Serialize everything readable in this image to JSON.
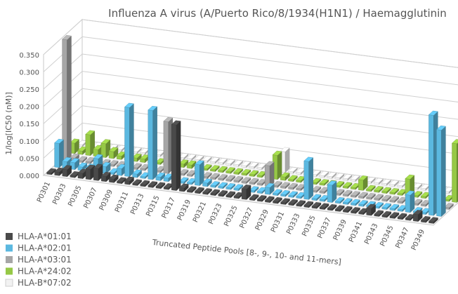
{
  "chart_data": {
    "type": "bar",
    "variant": "3d-clustered-column",
    "title": "Influenza A virus (A/Puerto Rico/8/1934(H1N1) / Haemagglutinin",
    "xlabel": "Truncated Peptide Pools [8-, 9-, 10- and 11-mers]",
    "ylabel": "1/log[IC50 (nM)]",
    "ylim": [
      0,
      0.35
    ],
    "yticks": [
      "0.000",
      "0.050",
      "0.100",
      "0.150",
      "0.200",
      "0.250",
      "0.300",
      "0.350"
    ],
    "categories": [
      "P0301",
      "P0302",
      "P0303",
      "P0304",
      "P0305",
      "P0306",
      "P0307",
      "P0308",
      "P0309",
      "P0310",
      "P0311",
      "P0312",
      "P0313",
      "P0314",
      "P0315",
      "P0316",
      "P0317",
      "P0318",
      "P0319",
      "P0320",
      "P0321",
      "P0322",
      "P0323",
      "P0324",
      "P0325",
      "P0326",
      "P0327",
      "P0328",
      "P0329",
      "P0330",
      "P0331",
      "P0332",
      "P0333",
      "P0334",
      "P0335",
      "P0336",
      "P0337",
      "P0338",
      "P0339",
      "P0340",
      "P0341",
      "P0342",
      "P0343",
      "P0344",
      "P0345",
      "P0346",
      "P0347",
      "P0348",
      "P0349",
      "P0350"
    ],
    "category_labels_shown": [
      "P0301",
      "P0303",
      "P0305",
      "P0307",
      "P0309",
      "P0311",
      "P0313",
      "P0315",
      "P0317",
      "P0319",
      "P0321",
      "P0323",
      "P0325",
      "P0327",
      "P0329",
      "P0331",
      "P0333",
      "P0335",
      "P0337",
      "P0339",
      "P0341",
      "P0343",
      "P0345",
      "P0347",
      "P0349"
    ],
    "series": [
      {
        "name": "HLA-A*01:01",
        "color": "#4a4a4a",
        "values": [
          0.005,
          0.01,
          0.02,
          0.005,
          0.015,
          0.03,
          0.035,
          0.015,
          0.01,
          0.005,
          0.01,
          0.005,
          0.005,
          0.005,
          0.005,
          0.005,
          0.19,
          0.01,
          0.005,
          0.005,
          0.005,
          0.005,
          0.005,
          0.005,
          0.005,
          0.03,
          0.005,
          0.005,
          0.005,
          0.005,
          0.005,
          0.005,
          0.005,
          0.005,
          0.005,
          0.005,
          0.005,
          0.005,
          0.005,
          0.005,
          0.005,
          0.02,
          0.005,
          0.005,
          0.005,
          0.005,
          0.005,
          0.02,
          0.005,
          0.005
        ]
      },
      {
        "name": "HLA-A*02:01",
        "color": "#5bb8e0",
        "values": [
          0.07,
          0.02,
          0.02,
          0.01,
          0.01,
          0.04,
          0.02,
          0.005,
          0.02,
          0.2,
          0.01,
          0.005,
          0.2,
          0.01,
          0.01,
          0.01,
          0.005,
          0.005,
          0.06,
          0.01,
          0.005,
          0.005,
          0.005,
          0.005,
          0.005,
          0.005,
          0.005,
          0.02,
          0.005,
          0.005,
          0.005,
          0.005,
          0.11,
          0.005,
          0.005,
          0.05,
          0.005,
          0.005,
          0.005,
          0.005,
          0.005,
          0.005,
          0.005,
          0.005,
          0.005,
          0.05,
          0.005,
          0.005,
          0.29,
          0.25
        ]
      },
      {
        "name": "HLA-A*03:01",
        "color": "#a6a6a6",
        "values": [
          0.35,
          0.01,
          0.005,
          0.005,
          0.005,
          0.005,
          0.005,
          0.005,
          0.005,
          0.005,
          0.005,
          0.005,
          0.005,
          0.15,
          0.005,
          0.005,
          0.005,
          0.005,
          0.005,
          0.005,
          0.005,
          0.005,
          0.005,
          0.005,
          0.005,
          0.005,
          0.06,
          0.005,
          0.005,
          0.005,
          0.005,
          0.005,
          0.005,
          0.005,
          0.005,
          0.005,
          0.005,
          0.005,
          0.005,
          0.005,
          0.005,
          0.005,
          0.005,
          0.005,
          0.005,
          0.005,
          0.005,
          0.005,
          0.005,
          0.005
        ]
      },
      {
        "name": "HLA-A*24:02",
        "color": "#96c846",
        "values": [
          0.03,
          0.01,
          0.06,
          0.02,
          0.04,
          0.02,
          0.01,
          0.01,
          0.01,
          0.01,
          0.03,
          0.005,
          0.01,
          0.01,
          0.01,
          0.01,
          0.005,
          0.005,
          0.005,
          0.005,
          0.005,
          0.005,
          0.005,
          0.005,
          0.005,
          0.005,
          0.07,
          0.01,
          0.005,
          0.005,
          0.005,
          0.005,
          0.005,
          0.005,
          0.005,
          0.005,
          0.005,
          0.03,
          0.005,
          0.005,
          0.005,
          0.005,
          0.005,
          0.05,
          0.005,
          0.005,
          0.005,
          0.005,
          0.005,
          0.17
        ]
      },
      {
        "name": "HLA-B*07:02",
        "color": "#f2f2f2",
        "values": [
          0.005,
          0.005,
          0.005,
          0.005,
          0.005,
          0.005,
          0.005,
          0.005,
          0.005,
          0.005,
          0.005,
          0.005,
          0.005,
          0.005,
          0.005,
          0.005,
          0.005,
          0.005,
          0.005,
          0.005,
          0.005,
          0.005,
          0.005,
          0.005,
          0.005,
          0.005,
          0.06,
          0.005,
          0.005,
          0.005,
          0.005,
          0.005,
          0.005,
          0.005,
          0.005,
          0.005,
          0.005,
          0.005,
          0.005,
          0.005,
          0.005,
          0.005,
          0.005,
          0.005,
          0.005,
          0.005,
          0.005,
          0.005,
          0.005,
          0.005
        ]
      }
    ],
    "grid": true,
    "legend_position": "bottom-left"
  }
}
